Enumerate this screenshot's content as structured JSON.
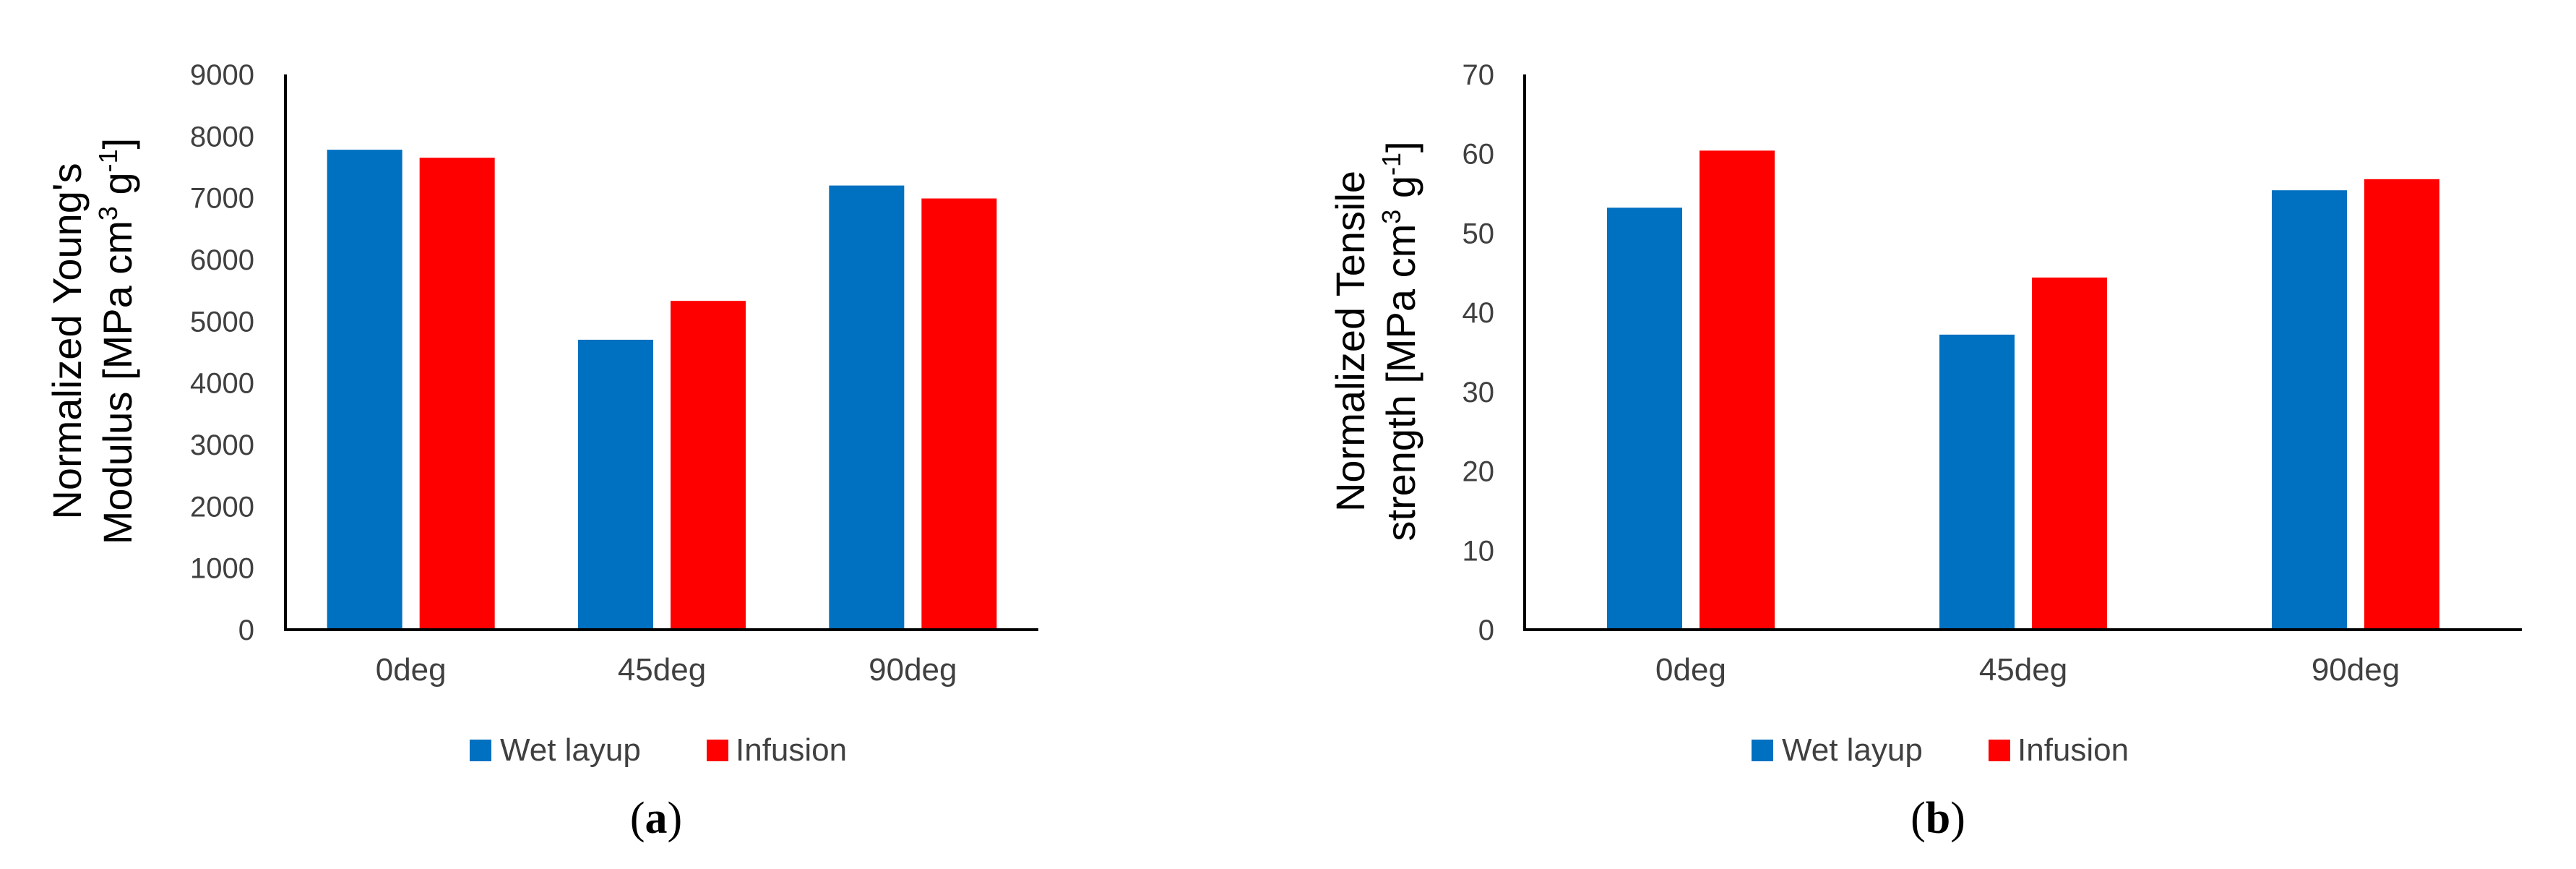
{
  "chart_data": [
    {
      "type": "bar",
      "panel_label": "a",
      "categories": [
        "0deg",
        "45deg",
        "90deg"
      ],
      "series": [
        {
          "name": "Wet layup",
          "color": "#0070C0",
          "values": [
            7780,
            4700,
            7200
          ]
        },
        {
          "name": "Infusion",
          "color": "#FF0000",
          "values": [
            7650,
            5330,
            6990
          ]
        }
      ],
      "ylabel_line1": "Normalized Young's",
      "ylabel_line2_main": "Modulus  [MPa cm",
      "ylabel_line2_mid": " g",
      "ylabel_line2_end": "]",
      "ylabel_sup1": "3",
      "ylabel_sup2": "-1",
      "ylim": [
        0,
        9000
      ],
      "yticks": [
        0,
        1000,
        2000,
        3000,
        4000,
        5000,
        6000,
        7000,
        8000,
        9000
      ],
      "legend_position": "bottom-center",
      "grid": false
    },
    {
      "type": "bar",
      "panel_label": "b",
      "categories": [
        "0deg",
        "45deg",
        "90deg"
      ],
      "series": [
        {
          "name": "Wet layup",
          "color": "#0070C0",
          "values": [
            53.2,
            37.2,
            55.4
          ]
        },
        {
          "name": "Infusion",
          "color": "#FF0000",
          "values": [
            60.4,
            44.4,
            56.8
          ]
        }
      ],
      "ylabel_line1": "Normalized Tensile",
      "ylabel_line2_main": "strength  [MPa cm",
      "ylabel_line2_mid": " g",
      "ylabel_line2_end": "]",
      "ylabel_sup1": "3",
      "ylabel_sup2": "-1",
      "ylim": [
        0,
        70
      ],
      "yticks": [
        0,
        10,
        20,
        30,
        40,
        50,
        60,
        70
      ],
      "legend_position": "bottom-center",
      "grid": false
    }
  ]
}
